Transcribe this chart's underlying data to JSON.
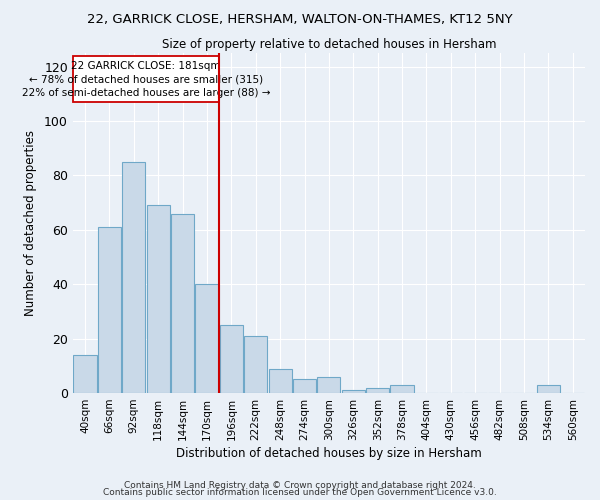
{
  "title1": "22, GARRICK CLOSE, HERSHAM, WALTON-ON-THAMES, KT12 5NY",
  "title2": "Size of property relative to detached houses in Hersham",
  "xlabel": "Distribution of detached houses by size in Hersham",
  "ylabel": "Number of detached properties",
  "footer1": "Contains HM Land Registry data © Crown copyright and database right 2024.",
  "footer2": "Contains public sector information licensed under the Open Government Licence v3.0.",
  "bar_labels": [
    "40sqm",
    "66sqm",
    "92sqm",
    "118sqm",
    "144sqm",
    "170sqm",
    "196sqm",
    "222sqm",
    "248sqm",
    "274sqm",
    "300sqm",
    "326sqm",
    "352sqm",
    "378sqm",
    "404sqm",
    "430sqm",
    "456sqm",
    "482sqm",
    "508sqm",
    "534sqm",
    "560sqm"
  ],
  "bar_values": [
    14,
    61,
    85,
    69,
    66,
    40,
    25,
    21,
    9,
    5,
    6,
    1,
    2,
    3,
    0,
    0,
    0,
    0,
    0,
    3,
    0
  ],
  "bar_color": "#c9d9e8",
  "bar_edge_color": "#6fa8c8",
  "background_color": "#eaf0f7",
  "property_label": "22 GARRICK CLOSE: 181sqm",
  "annotation_line1": "← 78% of detached houses are smaller (315)",
  "annotation_line2": "22% of semi-detached houses are larger (88) →",
  "vline_x_index": 5.5,
  "vline_color": "#cc0000",
  "annotation_box_color": "#cc0000",
  "ylim": [
    0,
    125
  ],
  "yticks": [
    0,
    20,
    40,
    60,
    80,
    100,
    120
  ]
}
